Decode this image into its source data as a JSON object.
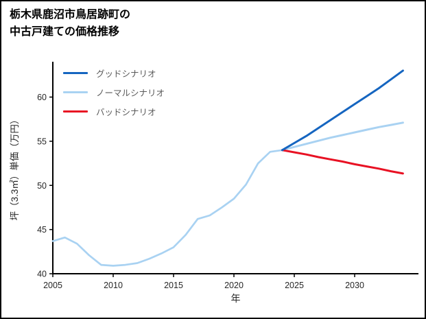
{
  "page": {
    "title_line1": "栃木県鹿沼市鳥居跡町の",
    "title_line2": "中古戸建ての価格推移"
  },
  "chart_data": {
    "type": "line",
    "title": "栃木県鹿沼市鳥居跡町の中古戸建ての価格推移",
    "xlabel": "年",
    "ylabel": "坪（3.3㎡）単価（万円）",
    "xlim": [
      2005,
      2035
    ],
    "ylim": [
      40,
      64
    ],
    "xticks": [
      2005,
      2010,
      2015,
      2020,
      2025,
      2030
    ],
    "yticks": [
      40,
      45,
      50,
      55,
      60
    ],
    "grid": false,
    "legend_position": "upper-left",
    "colors": {
      "good": "#1565c0",
      "normal": "#a9d2f2",
      "bad": "#e81123",
      "axis": "#000000",
      "tick_text": "#262626"
    },
    "legend": [
      {
        "label": "グッドシナリオ",
        "series": "good"
      },
      {
        "label": "ノーマルシナリオ",
        "series": "normal"
      },
      {
        "label": "バッドシナリオ",
        "series": "bad"
      }
    ],
    "series": [
      {
        "name": "historical",
        "color_key": "normal",
        "x": [
          2005,
          2006,
          2007,
          2008,
          2009,
          2010,
          2011,
          2012,
          2013,
          2014,
          2015,
          2016,
          2017,
          2018,
          2019,
          2020,
          2021,
          2022,
          2023,
          2024
        ],
        "y": [
          43.7,
          44.1,
          43.4,
          42.1,
          41.0,
          40.9,
          41.0,
          41.2,
          41.7,
          42.3,
          43.0,
          44.4,
          46.2,
          46.6,
          47.5,
          48.5,
          50.1,
          52.5,
          53.8,
          54.0
        ]
      },
      {
        "name": "good",
        "color_key": "good",
        "x": [
          2024,
          2025,
          2026,
          2027,
          2028,
          2029,
          2030,
          2031,
          2032,
          2033,
          2034
        ],
        "y": [
          54.0,
          54.8,
          55.6,
          56.5,
          57.4,
          58.3,
          59.2,
          60.1,
          61.0,
          62.0,
          63.0
        ]
      },
      {
        "name": "normal",
        "color_key": "normal",
        "x": [
          2024,
          2025,
          2026,
          2027,
          2028,
          2029,
          2030,
          2031,
          2032,
          2033,
          2034
        ],
        "y": [
          54.0,
          54.35,
          54.7,
          55.05,
          55.4,
          55.7,
          56.0,
          56.3,
          56.6,
          56.85,
          57.1
        ]
      },
      {
        "name": "bad",
        "color_key": "bad",
        "x": [
          2024,
          2025,
          2026,
          2027,
          2028,
          2029,
          2030,
          2031,
          2032,
          2033,
          2034
        ],
        "y": [
          54.0,
          53.75,
          53.5,
          53.2,
          52.95,
          52.7,
          52.4,
          52.15,
          51.9,
          51.6,
          51.35
        ]
      }
    ]
  }
}
